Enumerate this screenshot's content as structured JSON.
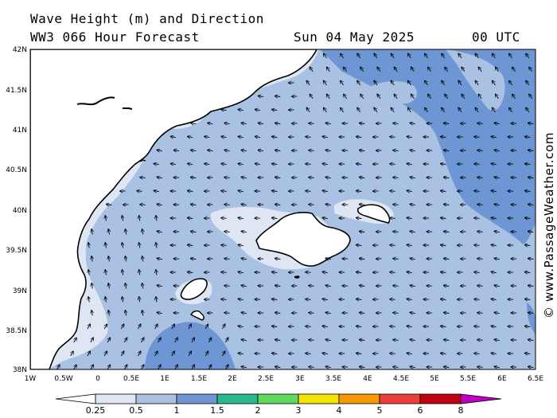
{
  "header": {
    "title": "Wave Height (m) and Direction",
    "model": "WW3 066 Hour Forecast",
    "date": "Sun 04 May 2025",
    "time": "00 UTC"
  },
  "watermark": "© www.PassageWeather.com",
  "axes": {
    "lat_labels": [
      "42N",
      "41.5N",
      "41N",
      "40.5N",
      "40N",
      "39.5N",
      "39N",
      "38.5N",
      "38N"
    ],
    "lon_labels": [
      "1W",
      "0.5W",
      "0",
      "0.5E",
      "1E",
      "1.5E",
      "2E",
      "2.5E",
      "3E",
      "3.5E",
      "4E",
      "4.5E",
      "5E",
      "5.5E",
      "6E",
      "6.5E"
    ]
  },
  "colorbar": {
    "labels": [
      "0.25",
      "0.5",
      "1",
      "1.5",
      "2",
      "3",
      "4",
      "5",
      "6",
      "8"
    ],
    "colors": [
      "#dfe6f3",
      "#a9c2e4",
      "#6f96d4",
      "#2ab88f",
      "#60d85c",
      "#f2e400",
      "#f59a00",
      "#ed3f3a",
      "#c00010",
      "#c000c0"
    ]
  },
  "legend_colors": {
    "land": "#ffffff",
    "wave_025_05": "#dfe6f3",
    "wave_05_1": "#a9c2e4",
    "wave_1_15": "#6f96d4"
  }
}
